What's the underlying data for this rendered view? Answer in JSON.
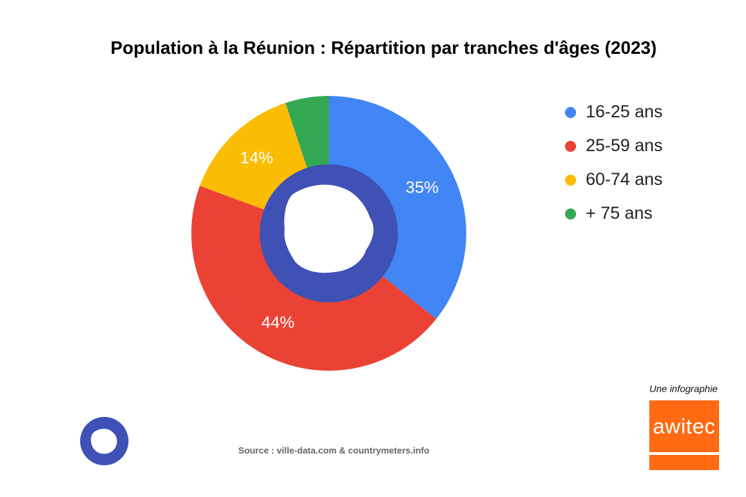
{
  "chart_data": {
    "type": "pie",
    "title": "Population à la Réunion : Répartition par tranches d'âges (2023)",
    "categories": [
      "16-25 ans",
      "25-59 ans",
      "60-74 ans",
      "+ 75 ans"
    ],
    "values": [
      35,
      44,
      14,
      5
    ],
    "labels": [
      "35%",
      "44%",
      "14%",
      ""
    ],
    "colors": [
      "#4285f4",
      "#ea4335",
      "#fbbc04",
      "#34a853"
    ],
    "center_color": "#3f51b5",
    "legend_position": "right"
  },
  "credit": "Une infographie",
  "logo": {
    "text": "awitec"
  },
  "source": "Source : ville-data.com & countrymeters.info"
}
